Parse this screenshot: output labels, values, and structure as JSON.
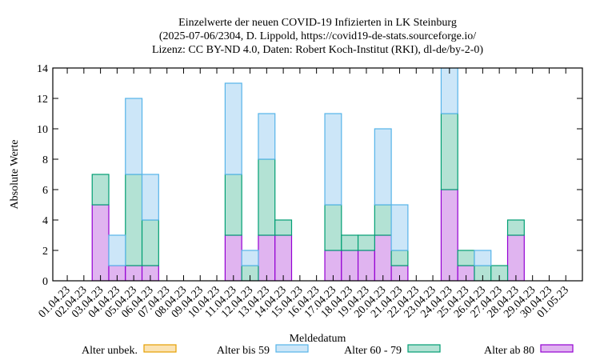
{
  "chart_data": {
    "type": "bar",
    "stacked": true,
    "title": [
      "Einzelwerte der neuen COVID-19 Infizierten in LK Steinburg",
      "(2025-07-06/2304, D. Lippold, https://covid19-de-stats.sourceforge.io/",
      "Lizenz: CC BY-ND 4.0, Daten: Robert Koch-Institut (RKI), dl-de/by-2-0)"
    ],
    "xlabel": "Meldedatum",
    "ylabel": "Absolute Werte",
    "ylim": [
      0,
      14
    ],
    "yticks": [
      0,
      2,
      4,
      6,
      8,
      10,
      12,
      14
    ],
    "categories": [
      "01.04.23",
      "02.04.23",
      "03.04.23",
      "04.04.23",
      "05.04.23",
      "06.04.23",
      "07.04.23",
      "08.04.23",
      "09.04.23",
      "10.04.23",
      "11.04.23",
      "12.04.23",
      "13.04.23",
      "14.04.23",
      "15.04.23",
      "16.04.23",
      "17.04.23",
      "18.04.23",
      "19.04.23",
      "20.04.23",
      "21.04.23",
      "22.04.23",
      "23.04.23",
      "24.04.23",
      "25.04.23",
      "26.04.23",
      "27.04.23",
      "28.04.23",
      "29.04.23",
      "30.04.23",
      "01.05.23"
    ],
    "series": [
      {
        "name": "Alter ab 80",
        "fill": "#e0b4f0",
        "stroke": "#9400d3",
        "values": [
          0,
          0,
          5,
          1,
          1,
          1,
          0,
          0,
          0,
          0,
          3,
          0,
          3,
          3,
          0,
          0,
          2,
          2,
          2,
          3,
          1,
          0,
          0,
          6,
          1,
          0,
          0,
          3,
          0,
          0,
          0
        ]
      },
      {
        "name": "Alter 60 - 79",
        "fill": "#b3e2d4",
        "stroke": "#009e73",
        "values": [
          0,
          0,
          2,
          0,
          6,
          3,
          0,
          0,
          0,
          0,
          4,
          1,
          5,
          1,
          0,
          0,
          3,
          1,
          1,
          2,
          1,
          0,
          0,
          5,
          1,
          1,
          1,
          1,
          0,
          0,
          0
        ]
      },
      {
        "name": "Alter bis 59",
        "fill": "#cce6f8",
        "stroke": "#56b4e9",
        "values": [
          0,
          0,
          0,
          2,
          5,
          3,
          0,
          0,
          0,
          0,
          6,
          1,
          3,
          0,
          0,
          0,
          6,
          0,
          0,
          5,
          3,
          0,
          0,
          3,
          0,
          1,
          0,
          0,
          0,
          0,
          0
        ]
      },
      {
        "name": "Alter unbek.",
        "fill": "#fbe3b3",
        "stroke": "#e69f00",
        "values": [
          0,
          0,
          0,
          0,
          0,
          0,
          0,
          0,
          0,
          0,
          0,
          0,
          0,
          0,
          0,
          0,
          0,
          0,
          0,
          0,
          0,
          0,
          0,
          0,
          0,
          0,
          0,
          0,
          0,
          0,
          0
        ]
      }
    ],
    "legend_order": [
      "Alter unbek.",
      "Alter bis 59",
      "Alter 60 - 79",
      "Alter ab 80"
    ],
    "legend_placement": "bottom",
    "grid": false
  }
}
